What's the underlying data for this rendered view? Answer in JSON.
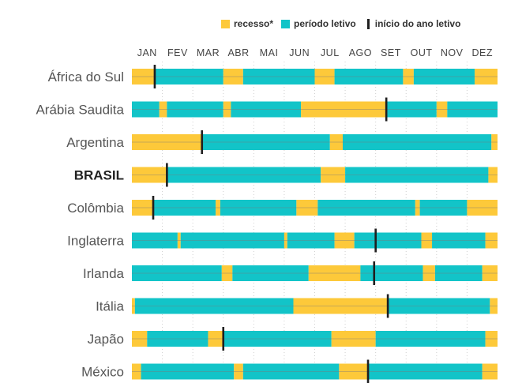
{
  "legend": {
    "recess_label": "recesso*",
    "period_label": "período letivo",
    "start_label": "início do ano letivo"
  },
  "colors": {
    "recess": "#FDC93A",
    "period": "#12C4C8",
    "start_marker": "#1f1f1f",
    "grid": "#cfcfcf",
    "midline": "#7a7a7a"
  },
  "chart_data": {
    "type": "timeline",
    "x_axis": {
      "unit": "month",
      "range": [
        1,
        13
      ],
      "tick_labels": [
        "JAN",
        "FEV",
        "MAR",
        "ABR",
        "MAI",
        "JUN",
        "JUL",
        "AGO",
        "SET",
        "OUT",
        "NOV",
        "DEZ"
      ]
    },
    "rows": [
      {
        "country": "África do Sul",
        "bold": false,
        "start": 1.75,
        "segments": [
          [
            "recesso",
            1.0,
            1.75
          ],
          [
            "periodo",
            1.75,
            4.0
          ],
          [
            "recesso",
            4.0,
            4.65
          ],
          [
            "periodo",
            4.65,
            7.0
          ],
          [
            "recesso",
            7.0,
            7.65
          ],
          [
            "periodo",
            7.65,
            9.9
          ],
          [
            "recesso",
            9.9,
            10.25
          ],
          [
            "periodo",
            10.25,
            12.25
          ],
          [
            "recesso",
            12.25,
            13.0
          ]
        ]
      },
      {
        "country": "Arábia Saudita",
        "bold": false,
        "start": 9.35,
        "segments": [
          [
            "periodo",
            1.0,
            1.9
          ],
          [
            "recesso",
            1.9,
            2.15
          ],
          [
            "periodo",
            2.15,
            4.0
          ],
          [
            "recesso",
            4.0,
            4.25
          ],
          [
            "periodo",
            4.25,
            6.55
          ],
          [
            "recesso",
            6.55,
            9.35
          ],
          [
            "periodo",
            9.35,
            11.0
          ],
          [
            "recesso",
            11.0,
            11.35
          ],
          [
            "periodo",
            11.35,
            13.0
          ]
        ]
      },
      {
        "country": "Argentina",
        "bold": false,
        "start": 3.3,
        "segments": [
          [
            "recesso",
            1.0,
            3.3
          ],
          [
            "periodo",
            3.3,
            7.5
          ],
          [
            "recesso",
            7.5,
            7.92
          ],
          [
            "periodo",
            7.92,
            12.8
          ],
          [
            "recesso",
            12.8,
            13.0
          ]
        ]
      },
      {
        "country": "BRASIL",
        "bold": true,
        "start": 2.15,
        "segments": [
          [
            "recesso",
            1.0,
            2.15
          ],
          [
            "periodo",
            2.15,
            7.2
          ],
          [
            "recesso",
            7.2,
            8.0
          ],
          [
            "periodo",
            8.0,
            12.7
          ],
          [
            "recesso",
            12.7,
            13.0
          ]
        ]
      },
      {
        "country": "Colômbia",
        "bold": false,
        "start": 1.7,
        "segments": [
          [
            "recesso",
            1.0,
            1.7
          ],
          [
            "periodo",
            1.7,
            3.75
          ],
          [
            "recesso",
            3.75,
            3.9
          ],
          [
            "periodo",
            3.9,
            6.4
          ],
          [
            "recesso",
            6.4,
            7.1
          ],
          [
            "periodo",
            7.1,
            10.3
          ],
          [
            "recesso",
            10.3,
            10.45
          ],
          [
            "periodo",
            10.45,
            12.0
          ],
          [
            "recesso",
            12.0,
            13.0
          ]
        ]
      },
      {
        "country": "Inglaterra",
        "bold": false,
        "start": 9.0,
        "segments": [
          [
            "periodo",
            1.0,
            2.5
          ],
          [
            "recesso",
            2.5,
            2.6
          ],
          [
            "periodo",
            2.6,
            6.0
          ],
          [
            "recesso",
            6.0,
            6.1
          ],
          [
            "periodo",
            6.1,
            7.65
          ],
          [
            "recesso",
            7.65,
            8.3
          ],
          [
            "periodo",
            8.3,
            10.5
          ],
          [
            "recesso",
            10.5,
            10.85
          ],
          [
            "periodo",
            10.85,
            12.6
          ],
          [
            "recesso",
            12.6,
            13.0
          ]
        ]
      },
      {
        "country": "Irlanda",
        "bold": false,
        "start": 8.95,
        "segments": [
          [
            "periodo",
            1.0,
            3.95
          ],
          [
            "recesso",
            3.95,
            4.3
          ],
          [
            "periodo",
            4.3,
            6.8
          ],
          [
            "recesso",
            6.8,
            8.5
          ],
          [
            "periodo",
            8.5,
            10.55
          ],
          [
            "recesso",
            10.55,
            10.95
          ],
          [
            "periodo",
            10.95,
            12.5
          ],
          [
            "recesso",
            12.5,
            13.0
          ]
        ]
      },
      {
        "country": "Itália",
        "bold": false,
        "start": 9.4,
        "segments": [
          [
            "recesso",
            1.0,
            1.1
          ],
          [
            "periodo",
            1.1,
            6.3
          ],
          [
            "recesso",
            6.3,
            9.4
          ],
          [
            "periodo",
            9.4,
            12.75
          ],
          [
            "recesso",
            12.75,
            13.0
          ]
        ]
      },
      {
        "country": "Japão",
        "bold": false,
        "start": 4.0,
        "segments": [
          [
            "recesso",
            1.0,
            1.5
          ],
          [
            "periodo",
            1.5,
            3.5
          ],
          [
            "recesso",
            3.5,
            4.0
          ],
          [
            "periodo",
            4.0,
            7.55
          ],
          [
            "recesso",
            7.55,
            9.0
          ],
          [
            "periodo",
            9.0,
            12.6
          ],
          [
            "recesso",
            12.6,
            13.0
          ]
        ]
      },
      {
        "country": "México",
        "bold": false,
        "start": 8.75,
        "segments": [
          [
            "recesso",
            1.0,
            1.3
          ],
          [
            "periodo",
            1.3,
            4.35
          ],
          [
            "recesso",
            4.35,
            4.65
          ],
          [
            "periodo",
            4.65,
            7.8
          ],
          [
            "recesso",
            7.8,
            8.75
          ],
          [
            "periodo",
            8.75,
            12.5
          ],
          [
            "recesso",
            12.5,
            13.0
          ]
        ]
      }
    ]
  }
}
